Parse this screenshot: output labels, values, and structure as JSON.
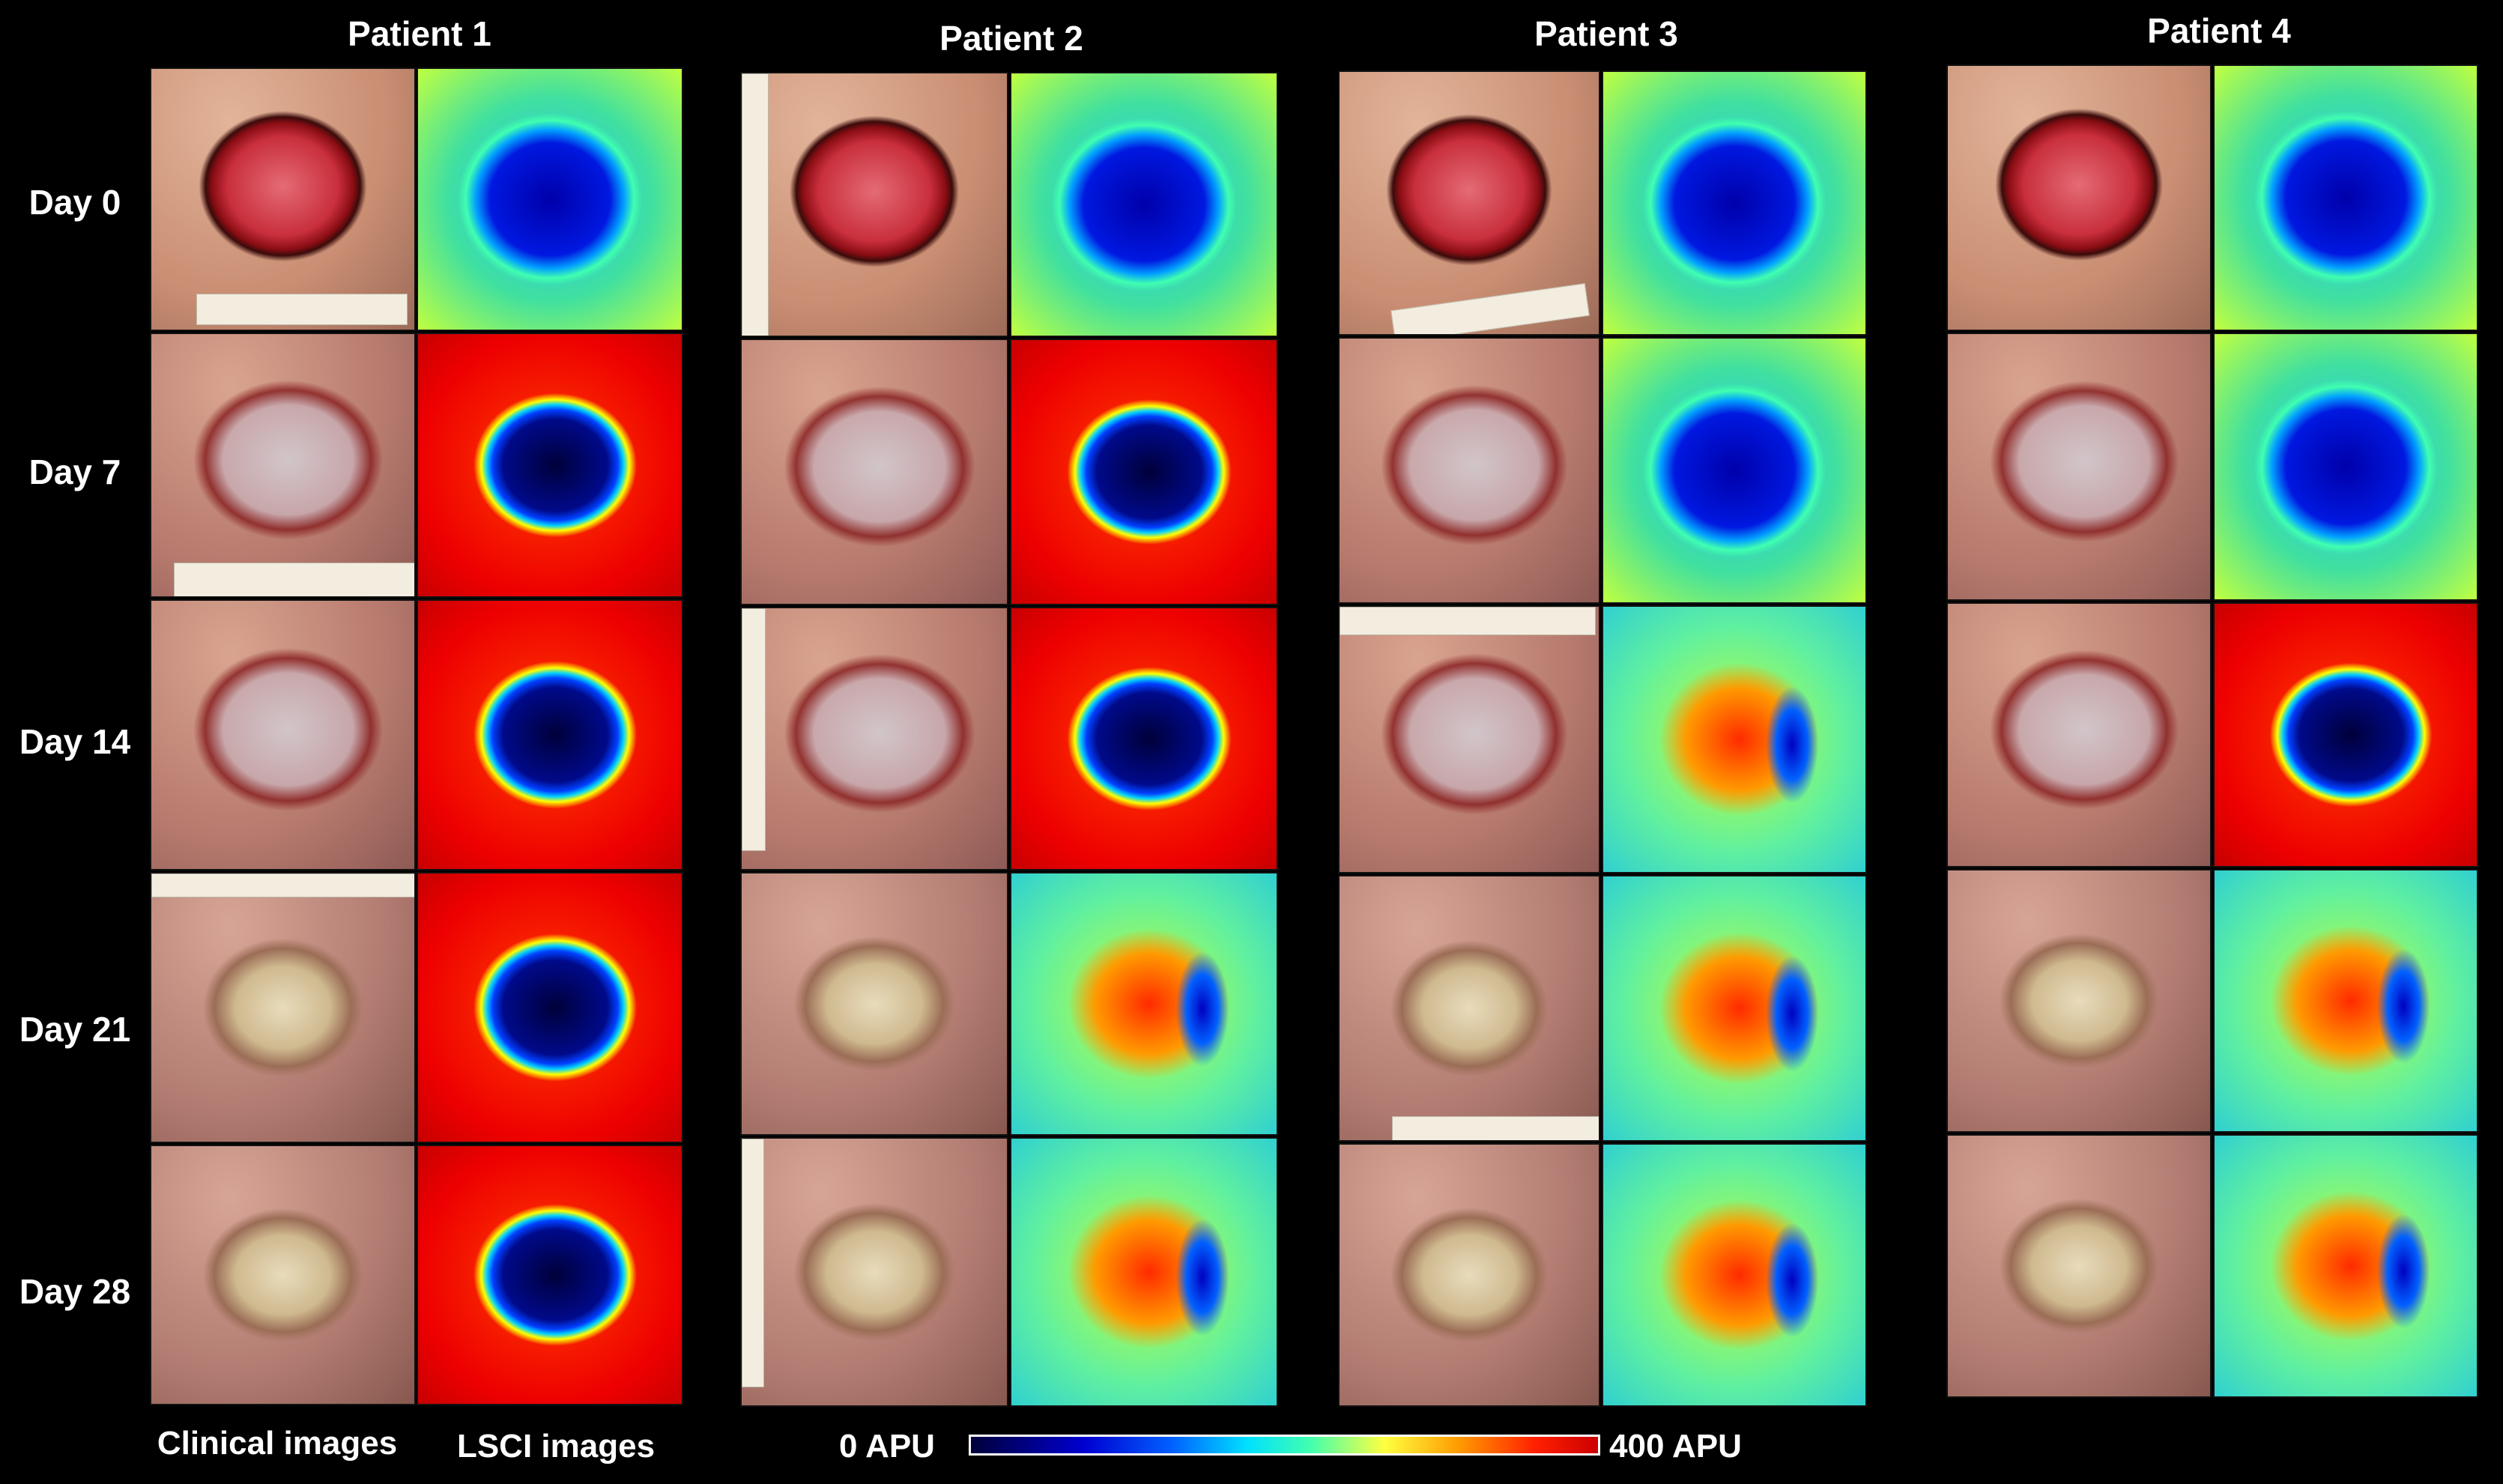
{
  "patients": [
    "Patient 1",
    "Patient 2",
    "Patient 3",
    "Patient 4"
  ],
  "days": [
    "Day 0",
    "Day 7",
    "Day 14",
    "Day 21",
    "Day 28"
  ],
  "column_types": {
    "clinical": "Clinical images",
    "lsci": "LSCI images"
  },
  "colorbar": {
    "min_label": "0 APU",
    "max_label": "400 APU",
    "colors": [
      "#00003a",
      "#0000d0",
      "#0060ff",
      "#00e0ff",
      "#40ffb0",
      "#ffff40",
      "#ff9900",
      "#ff2000",
      "#cc0000"
    ]
  }
}
